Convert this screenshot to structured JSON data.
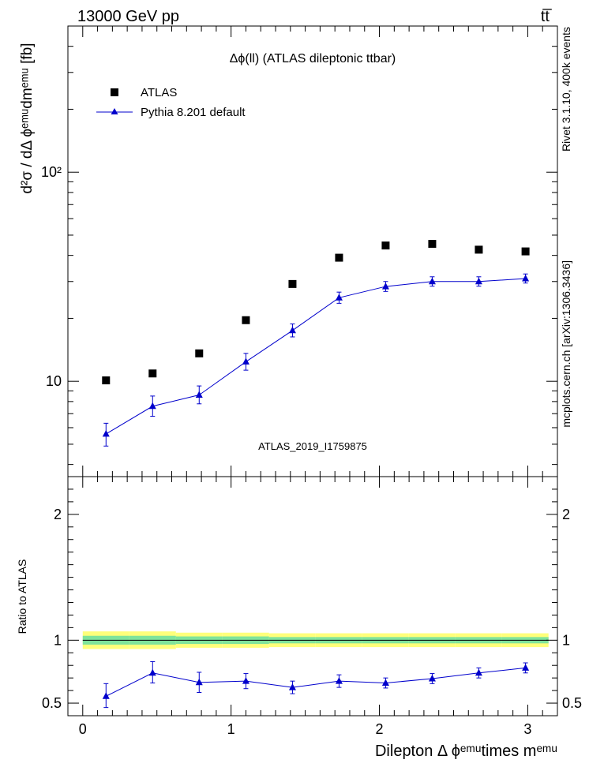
{
  "header": {
    "left": "13000 GeV pp",
    "right": "tt̅"
  },
  "side_labels": {
    "top": "Rivet 3.1.10,  400k events",
    "bottom": "mcplots.cern.ch [arXiv:1306.3436]"
  },
  "colors": {
    "data": "#000000",
    "mc": "#0000cc",
    "band_inner": "#7fe39b",
    "band_outer": "#ffff7a",
    "watermark": "#999999"
  },
  "chart_data": [
    {
      "type": "scatter",
      "title": "Δϕ(ll) (ATLAS dileptonic ttbar)",
      "ylabel": "d²σ / dΔ ϕᵉᵐᵘdmᵉᵐᵘ [fb]",
      "yscale": "log",
      "xlim": [
        -0.1,
        3.2
      ],
      "ylim": [
        3.5,
        500
      ],
      "y_ticks": [
        {
          "v": 10,
          "label": "10"
        },
        {
          "v": 100,
          "label": "10²"
        }
      ],
      "watermark": "ATLAS_2019_I1759875",
      "legend": [
        "ATLAS",
        "Pythia 8.201 default"
      ],
      "legend_position": "top-left",
      "x": [
        0.157,
        0.471,
        0.785,
        1.1,
        1.414,
        1.728,
        2.042,
        2.356,
        2.67,
        2.985
      ],
      "series": [
        {
          "name": "ATLAS",
          "marker": "square",
          "values": [
            10.1,
            10.9,
            13.6,
            19.6,
            29.2,
            39.0,
            44.6,
            45.4,
            42.6,
            41.8
          ]
        },
        {
          "name": "Pythia 8.201 default",
          "marker": "triangle",
          "values": [
            5.6,
            7.6,
            8.6,
            12.4,
            17.5,
            25.1,
            28.4,
            30.0,
            30.0,
            31.0
          ],
          "err_low": [
            0.7,
            0.8,
            0.8,
            1.1,
            1.2,
            1.5,
            1.5,
            1.5,
            1.5,
            1.5
          ],
          "err_high": [
            0.7,
            0.9,
            0.9,
            1.2,
            1.3,
            1.6,
            1.6,
            1.6,
            1.6,
            1.6
          ]
        }
      ]
    },
    {
      "type": "scatter",
      "ylabel": "Ratio to ATLAS",
      "xlabel": "Dilepton Δ ϕᵉᵐᵘtimes mᵉᵐᵘ",
      "xlim": [
        -0.1,
        3.2
      ],
      "ylim": [
        0.4,
        2.3
      ],
      "x_ticks": [
        0,
        1,
        2,
        3
      ],
      "y_ticks": [
        {
          "v": 0.5,
          "label": "0.5"
        },
        {
          "v": 1,
          "label": "1"
        },
        {
          "v": 2,
          "label": "2"
        }
      ],
      "x": [
        0.157,
        0.471,
        0.785,
        1.1,
        1.414,
        1.728,
        2.042,
        2.356,
        2.67,
        2.985
      ],
      "bands": {
        "edges": [
          0,
          0.314,
          0.628,
          0.942,
          1.256,
          1.57,
          1.884,
          2.198,
          2.512,
          2.826,
          3.14
        ],
        "inner_half": [
          0.035,
          0.035,
          0.03,
          0.03,
          0.025,
          0.025,
          0.025,
          0.025,
          0.025,
          0.025
        ],
        "outer_half": [
          0.07,
          0.07,
          0.06,
          0.06,
          0.055,
          0.055,
          0.055,
          0.055,
          0.055,
          0.055
        ]
      },
      "series": [
        {
          "name": "Pythia 8.201 default",
          "values": [
            0.555,
            0.74,
            0.665,
            0.675,
            0.625,
            0.675,
            0.66,
            0.695,
            0.74,
            0.78
          ],
          "err_low": [
            0.09,
            0.08,
            0.08,
            0.06,
            0.05,
            0.05,
            0.04,
            0.04,
            0.04,
            0.04
          ],
          "err_high": [
            0.1,
            0.09,
            0.08,
            0.06,
            0.05,
            0.05,
            0.04,
            0.04,
            0.04,
            0.04
          ]
        }
      ]
    }
  ]
}
